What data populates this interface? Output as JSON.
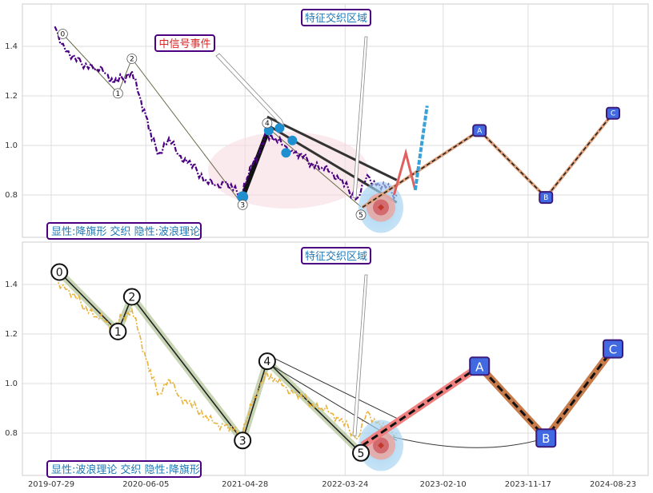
{
  "chart_data": [
    {
      "type": "line",
      "panel": "top",
      "title": "",
      "ylim": [
        0.62,
        1.56
      ],
      "yticks": [
        "0.8",
        "1.0",
        "1.2",
        "1.4"
      ],
      "x_dates_range": [
        "2019-07-29",
        "2024-11-10"
      ],
      "grid": true,
      "series": [
        {
          "name": "",
          "color": "#4b0082",
          "style": "dashdot",
          "points": [
            [
              "2019-08-10",
              1.48
            ],
            [
              "2019-09-15",
              1.38
            ],
            [
              "2019-10-20",
              1.34
            ],
            [
              "2019-11-20",
              1.33
            ],
            [
              "2019-12-25",
              1.31
            ],
            [
              "2020-01-25",
              1.29
            ],
            [
              "2020-02-20",
              1.25
            ],
            [
              "2020-03-20",
              1.27
            ],
            [
              "2020-04-20",
              1.3
            ],
            [
              "2020-05-15",
              1.2
            ],
            [
              "2020-06-05",
              1.12
            ],
            [
              "2020-06-25",
              1.02
            ],
            [
              "2020-07-20",
              0.97
            ],
            [
              "2020-08-20",
              1.03
            ],
            [
              "2020-09-20",
              0.96
            ],
            [
              "2020-10-20",
              0.93
            ],
            [
              "2020-11-20",
              0.9
            ],
            [
              "2020-12-20",
              0.86
            ],
            [
              "2021-01-20",
              0.84
            ],
            [
              "2021-02-20",
              0.85
            ],
            [
              "2021-03-20",
              0.82
            ],
            [
              "2021-04-15",
              0.8
            ],
            [
              "2021-05-05",
              0.87
            ],
            [
              "2021-05-25",
              0.93
            ],
            [
              "2021-06-15",
              0.97
            ],
            [
              "2021-07-10",
              1.05
            ],
            [
              "2021-08-05",
              1.03
            ],
            [
              "2021-09-05",
              1.0
            ],
            [
              "2021-10-05",
              0.97
            ],
            [
              "2021-11-05",
              0.95
            ],
            [
              "2021-12-05",
              0.93
            ],
            [
              "2022-01-05",
              0.91
            ],
            [
              "2022-02-05",
              0.89
            ],
            [
              "2022-03-05",
              0.86
            ],
            [
              "2022-04-05",
              0.82
            ],
            [
              "2022-05-05",
              0.79
            ],
            [
              "2022-06-05",
              0.88
            ],
            [
              "2022-07-05",
              0.84
            ],
            [
              "2022-08-05",
              0.83
            ],
            [
              "2022-09-10",
              0.8
            ]
          ]
        }
      ],
      "wave_labels": [
        {
          "label": "0",
          "x": "2019-09-05",
          "y": 1.45
        },
        {
          "label": "1",
          "x": "2020-03-05",
          "y": 1.21
        },
        {
          "label": "2",
          "x": "2020-04-20",
          "y": 1.35
        },
        {
          "label": "3",
          "x": "2021-04-20",
          "y": 0.76
        },
        {
          "label": "4",
          "x": "2021-07-10",
          "y": 1.09
        },
        {
          "label": "5",
          "x": "2022-05-15",
          "y": 0.72
        }
      ],
      "projection": [
        {
          "label": "A",
          "x": "2023-06-10",
          "y": 1.06
        },
        {
          "label": "B",
          "x": "2024-01-15",
          "y": 0.79
        },
        {
          "label": "C",
          "x": "2024-08-23",
          "y": 1.13
        }
      ],
      "annotations": [
        {
          "text": "特征交织区域",
          "color": "#1f77b4"
        },
        {
          "text": "中信号事件",
          "color": "#d62728"
        },
        {
          "text": "显性:降旗形 交织 隐性:波浪理论",
          "color": "#1f77b4"
        }
      ]
    },
    {
      "type": "line",
      "panel": "bottom",
      "title": "",
      "ylim": [
        0.62,
        1.56
      ],
      "yticks": [
        "0.8",
        "1.0",
        "1.2",
        "1.4"
      ],
      "xticks": [
        "2019-07-29",
        "2020-06-05",
        "2021-04-28",
        "2022-03-24",
        "2023-02-10",
        "2023-11-17",
        "2024-08-23"
      ],
      "grid": true,
      "series": [
        {
          "name": "",
          "color": "#e8b23a",
          "style": "dashdot",
          "points": [
            [
              "2019-08-10",
              1.43
            ],
            [
              "2019-09-15",
              1.38
            ],
            [
              "2019-10-20",
              1.34
            ],
            [
              "2019-11-20",
              1.31
            ],
            [
              "2019-12-25",
              1.27
            ],
            [
              "2020-01-25",
              1.25
            ],
            [
              "2020-02-20",
              1.22
            ],
            [
              "2020-03-20",
              1.27
            ],
            [
              "2020-04-20",
              1.3
            ],
            [
              "2020-05-15",
              1.2
            ],
            [
              "2020-06-05",
              1.1
            ],
            [
              "2020-06-25",
              1.02
            ],
            [
              "2020-07-20",
              0.96
            ],
            [
              "2020-08-20",
              1.02
            ],
            [
              "2020-09-20",
              0.95
            ],
            [
              "2020-10-20",
              0.92
            ],
            [
              "2020-11-20",
              0.9
            ],
            [
              "2020-12-20",
              0.87
            ],
            [
              "2021-01-20",
              0.84
            ],
            [
              "2021-02-20",
              0.83
            ],
            [
              "2021-03-20",
              0.81
            ],
            [
              "2021-04-15",
              0.79
            ],
            [
              "2021-05-05",
              0.86
            ],
            [
              "2021-05-25",
              0.93
            ],
            [
              "2021-06-15",
              0.98
            ],
            [
              "2021-07-10",
              1.04
            ],
            [
              "2021-08-05",
              1.02
            ],
            [
              "2021-09-05",
              0.99
            ],
            [
              "2021-10-05",
              0.96
            ],
            [
              "2021-11-05",
              0.94
            ],
            [
              "2021-12-05",
              0.92
            ],
            [
              "2022-01-05",
              0.9
            ],
            [
              "2022-02-05",
              0.88
            ],
            [
              "2022-03-05",
              0.85
            ],
            [
              "2022-04-05",
              0.82
            ],
            [
              "2022-05-05",
              0.78
            ],
            [
              "2022-06-05",
              0.89
            ],
            [
              "2022-07-05",
              0.84
            ],
            [
              "2022-08-05",
              0.82
            ],
            [
              "2022-09-10",
              0.8
            ]
          ]
        }
      ],
      "wave_labels": [
        {
          "label": "0",
          "x": "2019-08-25",
          "y": 1.45
        },
        {
          "label": "1",
          "x": "2020-03-05",
          "y": 1.21
        },
        {
          "label": "2",
          "x": "2020-04-20",
          "y": 1.35
        },
        {
          "label": "3",
          "x": "2021-04-20",
          "y": 0.77
        },
        {
          "label": "4",
          "x": "2021-07-10",
          "y": 1.09
        },
        {
          "label": "5",
          "x": "2022-05-15",
          "y": 0.72
        }
      ],
      "projection": [
        {
          "label": "A",
          "x": "2023-06-10",
          "y": 1.07
        },
        {
          "label": "B",
          "x": "2024-01-15",
          "y": 0.78
        },
        {
          "label": "C",
          "x": "2024-08-23",
          "y": 1.14
        }
      ],
      "annotations": [
        {
          "text": "特征交织区域",
          "color": "#1f77b4"
        },
        {
          "text": "显性:波浪理论 交织 隐性:降旗形",
          "color": "#1f77b4"
        }
      ]
    }
  ]
}
